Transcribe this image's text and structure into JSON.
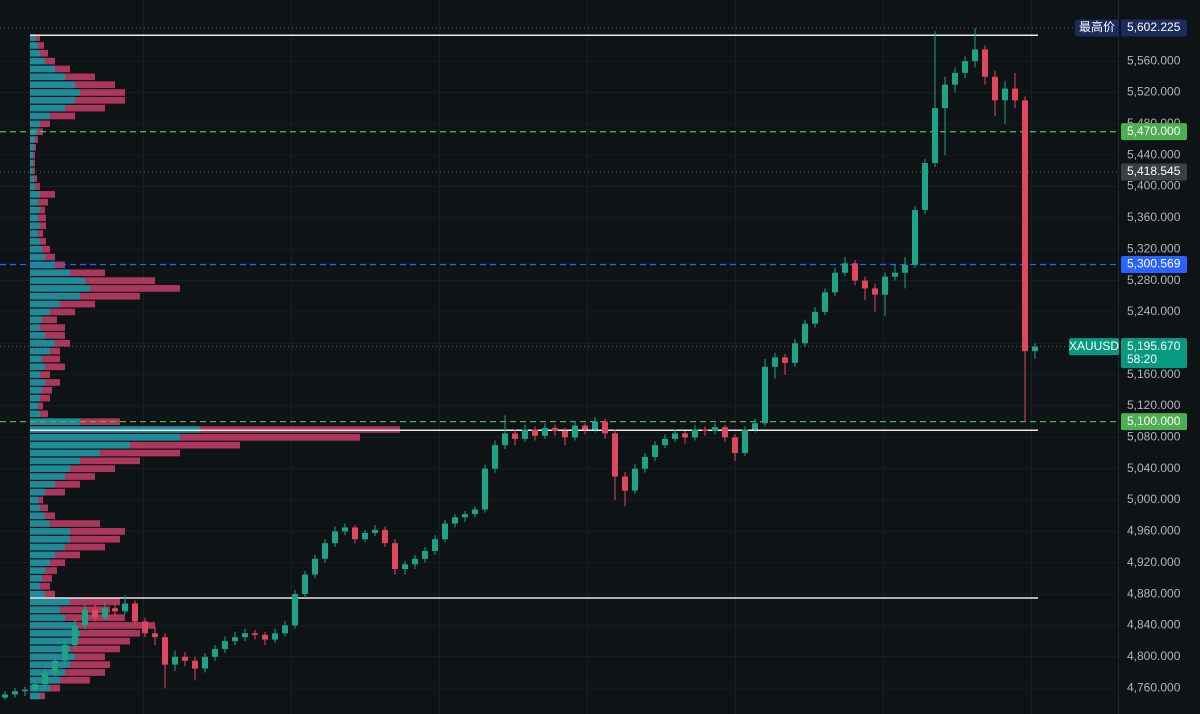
{
  "chart_data": {
    "type": "candlestick",
    "ylim": [
      4727,
      5638
    ],
    "yticks": [
      {
        "value": 4760,
        "label": "4,760.000"
      },
      {
        "value": 4800,
        "label": "4,800.000"
      },
      {
        "value": 4840,
        "label": "4,840.000"
      },
      {
        "value": 4880,
        "label": "4,880.000"
      },
      {
        "value": 4920,
        "label": "4,920.000"
      },
      {
        "value": 4960,
        "label": "4,960.000"
      },
      {
        "value": 5000,
        "label": "5,000.000"
      },
      {
        "value": 5040,
        "label": "5,040.000"
      },
      {
        "value": 5080,
        "label": "5,080.000"
      },
      {
        "value": 5120,
        "label": "5,120.000"
      },
      {
        "value": 5160,
        "label": "5,160.000"
      },
      {
        "value": 5200,
        "label": "5,200.000"
      },
      {
        "value": 5240,
        "label": "5,240.000"
      },
      {
        "value": 5280,
        "label": "5,280.000"
      },
      {
        "value": 5320,
        "label": "5,320.000"
      },
      {
        "value": 5360,
        "label": "5,360.000"
      },
      {
        "value": 5400,
        "label": "5,400.000"
      },
      {
        "value": 5440,
        "label": "5,440.000"
      },
      {
        "value": 5480,
        "label": "5,480.000"
      },
      {
        "value": 5520,
        "label": "5,520.000"
      },
      {
        "value": 5560,
        "label": "5,560.000"
      }
    ],
    "grid": true,
    "up_color": "#1fa387",
    "down_color": "#e0475f",
    "ohlc": [
      [
        4748,
        4756,
        4745,
        4752
      ],
      [
        4752,
        4760,
        4748,
        4756
      ],
      [
        4756,
        4762,
        4750,
        4758
      ],
      [
        4758,
        4770,
        4755,
        4765
      ],
      [
        4765,
        4785,
        4760,
        4780
      ],
      [
        4780,
        4800,
        4775,
        4795
      ],
      [
        4795,
        4820,
        4790,
        4815
      ],
      [
        4815,
        4848,
        4810,
        4840
      ],
      [
        4840,
        4868,
        4835,
        4860
      ],
      [
        4860,
        4866,
        4845,
        4850
      ],
      [
        4850,
        4870,
        4846,
        4862
      ],
      [
        4862,
        4868,
        4852,
        4858
      ],
      [
        4858,
        4878,
        4854,
        4868
      ],
      [
        4868,
        4872,
        4840,
        4845
      ],
      [
        4845,
        4850,
        4825,
        4830
      ],
      [
        4830,
        4838,
        4815,
        4825
      ],
      [
        4825,
        4830,
        4760,
        4790
      ],
      [
        4790,
        4808,
        4782,
        4800
      ],
      [
        4800,
        4806,
        4788,
        4795
      ],
      [
        4795,
        4800,
        4770,
        4785
      ],
      [
        4785,
        4805,
        4780,
        4800
      ],
      [
        4800,
        4815,
        4795,
        4810
      ],
      [
        4810,
        4826,
        4805,
        4820
      ],
      [
        4820,
        4832,
        4815,
        4825
      ],
      [
        4825,
        4836,
        4820,
        4830
      ],
      [
        4830,
        4834,
        4822,
        4828
      ],
      [
        4828,
        4832,
        4815,
        4822
      ],
      [
        4822,
        4836,
        4818,
        4830
      ],
      [
        4830,
        4846,
        4826,
        4840
      ],
      [
        4840,
        4885,
        4836,
        4880
      ],
      [
        4880,
        4910,
        4875,
        4905
      ],
      [
        4905,
        4930,
        4900,
        4925
      ],
      [
        4925,
        4950,
        4920,
        4945
      ],
      [
        4945,
        4966,
        4940,
        4960
      ],
      [
        4960,
        4970,
        4955,
        4965
      ],
      [
        4965,
        4968,
        4945,
        4950
      ],
      [
        4950,
        4962,
        4946,
        4958
      ],
      [
        4958,
        4968,
        4954,
        4962
      ],
      [
        4962,
        4966,
        4940,
        4945
      ],
      [
        4945,
        4950,
        4905,
        4912
      ],
      [
        4912,
        4922,
        4905,
        4918
      ],
      [
        4918,
        4930,
        4912,
        4925
      ],
      [
        4925,
        4940,
        4920,
        4935
      ],
      [
        4935,
        4955,
        4930,
        4950
      ],
      [
        4950,
        4975,
        4946,
        4970
      ],
      [
        4970,
        4982,
        4965,
        4978
      ],
      [
        4978,
        4986,
        4972,
        4982
      ],
      [
        4982,
        4992,
        4978,
        4988
      ],
      [
        4988,
        5045,
        4984,
        5040
      ],
      [
        5040,
        5076,
        5035,
        5070
      ],
      [
        5070,
        5108,
        5065,
        5085
      ],
      [
        5085,
        5090,
        5070,
        5078
      ],
      [
        5078,
        5096,
        5074,
        5090
      ],
      [
        5090,
        5094,
        5076,
        5082
      ],
      [
        5082,
        5098,
        5078,
        5092
      ],
      [
        5092,
        5096,
        5082,
        5088
      ],
      [
        5088,
        5092,
        5070,
        5080
      ],
      [
        5080,
        5100,
        5076,
        5095
      ],
      [
        5095,
        5098,
        5084,
        5090
      ],
      [
        5090,
        5106,
        5086,
        5100
      ],
      [
        5100,
        5104,
        5078,
        5085
      ],
      [
        5085,
        5090,
        5000,
        5030
      ],
      [
        5030,
        5036,
        4992,
        5012
      ],
      [
        5012,
        5046,
        5008,
        5040
      ],
      [
        5040,
        5060,
        5035,
        5055
      ],
      [
        5055,
        5075,
        5050,
        5070
      ],
      [
        5070,
        5084,
        5066,
        5078
      ],
      [
        5078,
        5090,
        5074,
        5085
      ],
      [
        5085,
        5088,
        5072,
        5080
      ],
      [
        5080,
        5096,
        5076,
        5090
      ],
      [
        5090,
        5094,
        5082,
        5088
      ],
      [
        5088,
        5098,
        5084,
        5093
      ],
      [
        5093,
        5096,
        5074,
        5080
      ],
      [
        5080,
        5084,
        5050,
        5060
      ],
      [
        5060,
        5094,
        5056,
        5090
      ],
      [
        5090,
        5104,
        5086,
        5098
      ],
      [
        5098,
        5180,
        5094,
        5170
      ],
      [
        5170,
        5188,
        5155,
        5182
      ],
      [
        5182,
        5186,
        5160,
        5175
      ],
      [
        5175,
        5206,
        5170,
        5200
      ],
      [
        5200,
        5230,
        5196,
        5225
      ],
      [
        5225,
        5246,
        5220,
        5240
      ],
      [
        5240,
        5270,
        5236,
        5265
      ],
      [
        5265,
        5296,
        5260,
        5290
      ],
      [
        5290,
        5310,
        5286,
        5302
      ],
      [
        5302,
        5306,
        5274,
        5280
      ],
      [
        5280,
        5285,
        5255,
        5270
      ],
      [
        5270,
        5276,
        5240,
        5262
      ],
      [
        5262,
        5290,
        5235,
        5285
      ],
      [
        5285,
        5300,
        5280,
        5290
      ],
      [
        5290,
        5310,
        5270,
        5300
      ],
      [
        5300,
        5375,
        5296,
        5370
      ],
      [
        5370,
        5435,
        5365,
        5430
      ],
      [
        5430,
        5598,
        5425,
        5500
      ],
      [
        5500,
        5540,
        5440,
        5530
      ],
      [
        5530,
        5552,
        5520,
        5545
      ],
      [
        5545,
        5566,
        5538,
        5560
      ],
      [
        5560,
        5602.225,
        5552,
        5575
      ],
      [
        5575,
        5580,
        5530,
        5540
      ],
      [
        5540,
        5548,
        5490,
        5510
      ],
      [
        5510,
        5535,
        5480,
        5525
      ],
      [
        5525,
        5545,
        5500,
        5510
      ],
      [
        5510,
        5515,
        5100,
        5190
      ],
      [
        5190,
        5200,
        5180,
        5195.67
      ]
    ],
    "volume_profile": {
      "xlim": [
        0,
        1000
      ],
      "buy_color": "#23a0b0",
      "sell_color": "#c93d68",
      "levels": [
        4750,
        4760,
        4770,
        4780,
        4790,
        4800,
        4810,
        4820,
        4830,
        4840,
        4850,
        4860,
        4870,
        4880,
        4890,
        4900,
        4910,
        4920,
        4930,
        4940,
        4950,
        4960,
        4970,
        4980,
        4990,
        5000,
        5010,
        5020,
        5030,
        5040,
        5050,
        5060,
        5070,
        5080,
        5090,
        5100,
        5110,
        5120,
        5130,
        5140,
        5150,
        5160,
        5170,
        5180,
        5190,
        5200,
        5210,
        5220,
        5230,
        5240,
        5250,
        5260,
        5270,
        5280,
        5290,
        5300,
        5310,
        5320,
        5330,
        5340,
        5350,
        5360,
        5370,
        5380,
        5390,
        5400,
        5410,
        5420,
        5430,
        5440,
        5450,
        5460,
        5470,
        5480,
        5490,
        5500,
        5510,
        5520,
        5530,
        5540,
        5550,
        5560,
        5570,
        5580,
        5590
      ],
      "buy": [
        10,
        20,
        30,
        35,
        40,
        45,
        40,
        45,
        50,
        45,
        35,
        30,
        40,
        15,
        10,
        12,
        15,
        20,
        25,
        35,
        40,
        40,
        20,
        15,
        10,
        8,
        15,
        25,
        35,
        40,
        50,
        70,
        100,
        150,
        170,
        50,
        10,
        8,
        10,
        12,
        15,
        10,
        15,
        12,
        20,
        25,
        15,
        10,
        12,
        20,
        30,
        50,
        60,
        55,
        40,
        25,
        15,
        12,
        10,
        8,
        10,
        8,
        10,
        8,
        10,
        5,
        4,
        3,
        3,
        3,
        4,
        5,
        8,
        10,
        20,
        35,
        45,
        50,
        45,
        35,
        25,
        15,
        10,
        8,
        6
      ],
      "sell": [
        5,
        10,
        30,
        40,
        40,
        30,
        50,
        55,
        60,
        80,
        60,
        50,
        50,
        10,
        10,
        10,
        12,
        15,
        25,
        40,
        50,
        55,
        50,
        10,
        8,
        5,
        20,
        25,
        30,
        45,
        60,
        80,
        110,
        180,
        200,
        40,
        8,
        5,
        10,
        10,
        15,
        10,
        20,
        18,
        10,
        15,
        20,
        25,
        15,
        25,
        35,
        60,
        90,
        70,
        35,
        10,
        10,
        8,
        6,
        5,
        6,
        8,
        5,
        10,
        15,
        5,
        3,
        2,
        2,
        2,
        2,
        3,
        5,
        10,
        25,
        40,
        50,
        45,
        40,
        30,
        15,
        10,
        8,
        6,
        4
      ]
    },
    "range_lines": [
      5593,
      5089,
      4875
    ],
    "price_lines": [
      {
        "value": 5602.225,
        "label": "5,602.225",
        "title": "最高价",
        "color": "#1c2b5e",
        "style": "dotted"
      },
      {
        "value": 5470,
        "label": "5,470.000",
        "color": "#4caf50",
        "style": "dashed"
      },
      {
        "value": 5418.545,
        "label": "5,418.545",
        "color": "#3b4047",
        "style": "dotted"
      },
      {
        "value": 5300.569,
        "label": "5,300.569",
        "color": "#2962ff",
        "style": "dashed"
      },
      {
        "value": 5195.67,
        "label": "5,195.670",
        "title": "XAUUSD",
        "countdown": "58:20",
        "color": "#089981",
        "style": "dotted"
      },
      {
        "value": 5100,
        "label": "5,100.000",
        "color": "#4caf50",
        "style": "dashed"
      }
    ]
  }
}
